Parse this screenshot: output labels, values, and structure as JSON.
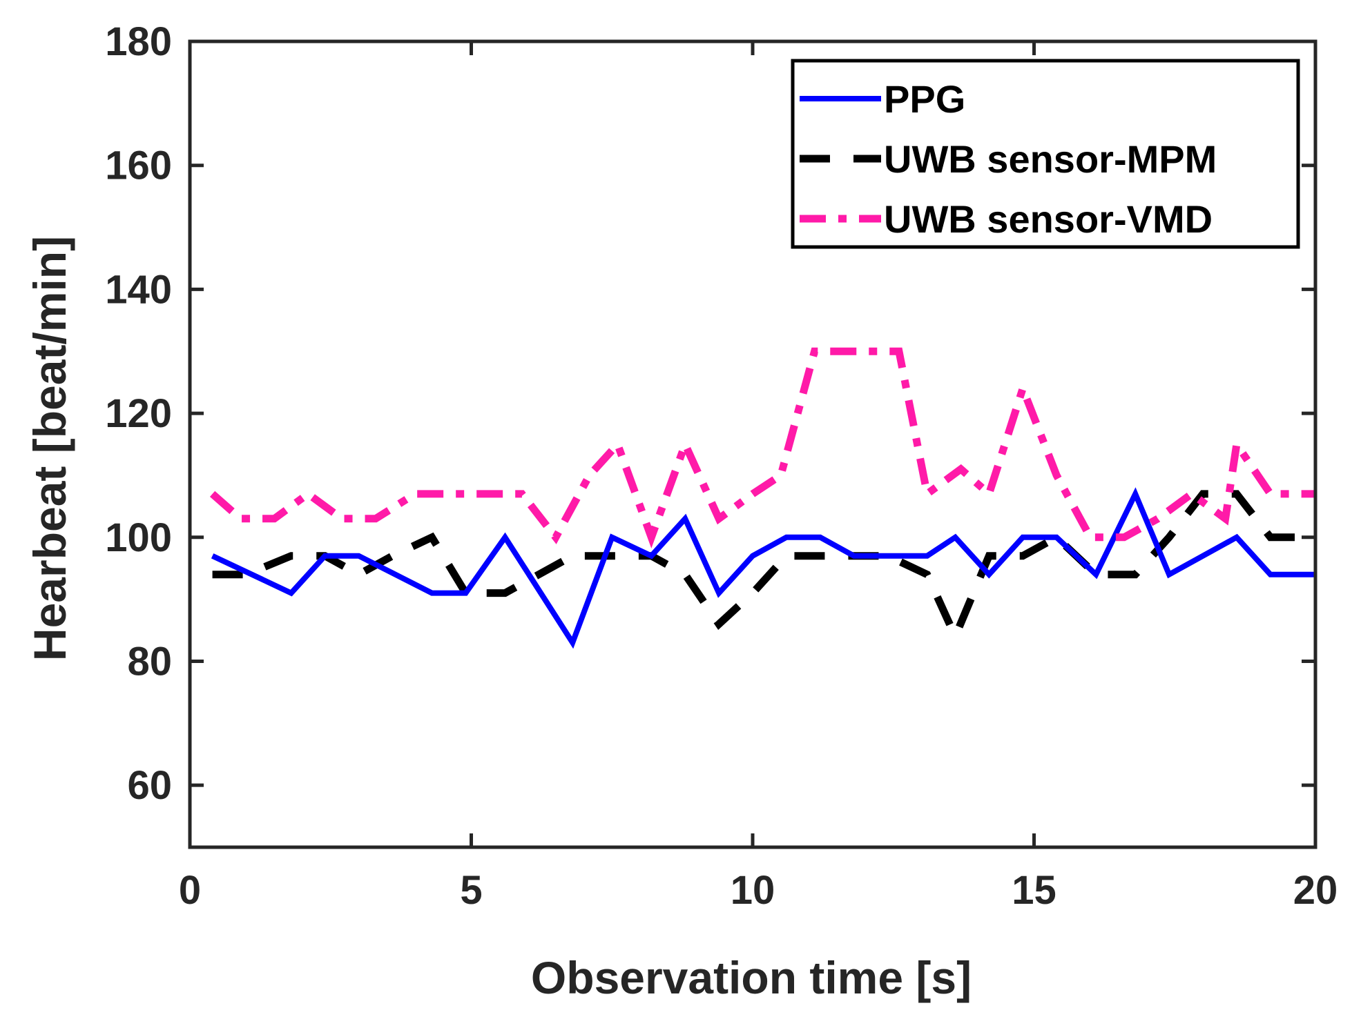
{
  "chart_data": {
    "type": "line",
    "title": "",
    "xlabel": "Observation time [s]",
    "ylabel": "Hearbeat [beat/min]",
    "xlim": [
      0,
      20
    ],
    "ylim": [
      50,
      180
    ],
    "xticks": [
      0,
      5,
      10,
      15,
      20
    ],
    "yticks": [
      60,
      80,
      100,
      120,
      140,
      160,
      180
    ],
    "xtick_labels": [
      "0",
      "5",
      "10",
      "15",
      "20"
    ],
    "ytick_labels": [
      "60",
      "80",
      "100",
      "120",
      "140",
      "160",
      "180"
    ],
    "grid": false,
    "legend_position": "top-right",
    "series": [
      {
        "name": "PPG",
        "color": "#0000ff",
        "style": "solid",
        "x": [
          0.4,
          1.8,
          2.4,
          3.0,
          4.3,
          4.9,
          5.6,
          6.8,
          7.5,
          8.2,
          8.8,
          9.4,
          10.0,
          10.6,
          11.2,
          11.8,
          12.4,
          13.1,
          13.6,
          14.2,
          14.8,
          15.4,
          16.1,
          16.8,
          17.4,
          18.0,
          18.6,
          19.2,
          20.0
        ],
        "y": [
          97,
          91,
          97,
          97,
          91,
          91,
          100,
          83,
          100,
          97,
          103,
          91,
          97,
          100,
          100,
          97,
          97,
          97,
          100,
          94,
          100,
          100,
          94,
          107,
          94,
          97,
          100,
          94,
          94
        ]
      },
      {
        "name": "UWB sensor-MPM",
        "color": "#000000",
        "style": "dashed",
        "x": [
          0.4,
          1.0,
          1.8,
          2.4,
          3.0,
          3.6,
          4.3,
          4.9,
          5.6,
          6.2,
          6.8,
          7.5,
          8.2,
          8.8,
          9.4,
          10.0,
          10.6,
          11.2,
          11.8,
          12.4,
          13.1,
          13.6,
          14.2,
          14.8,
          15.4,
          16.1,
          16.8,
          17.4,
          18.0,
          18.6,
          19.2,
          20.0
        ],
        "y": [
          94,
          94,
          97,
          97,
          94,
          97,
          100,
          91,
          91,
          94,
          97,
          97,
          97,
          94,
          86,
          91,
          97,
          97,
          97,
          97,
          94,
          84,
          97,
          97,
          100,
          94,
          94,
          100,
          107,
          107,
          100,
          100
        ]
      },
      {
        "name": "UWB sensor-VMD",
        "color": "#ff1aa8",
        "style": "dash-dot",
        "x": [
          0.4,
          0.9,
          1.5,
          2.1,
          2.7,
          3.3,
          4.0,
          4.6,
          5.2,
          5.9,
          6.5,
          7.1,
          7.6,
          8.2,
          8.8,
          9.4,
          10.0,
          10.5,
          11.1,
          11.7,
          12.3,
          12.6,
          13.1,
          13.7,
          14.2,
          14.8,
          15.4,
          16.0,
          16.6,
          17.2,
          17.8,
          18.4,
          18.6,
          19.2,
          20.0
        ],
        "y": [
          107,
          103,
          103,
          107,
          103,
          103,
          107,
          107,
          107,
          107,
          100,
          110,
          115,
          100,
          115,
          103,
          107,
          110,
          130,
          130,
          130,
          130,
          107,
          111,
          107,
          124,
          110,
          100,
          100,
          103,
          107,
          103,
          115,
          107,
          107
        ]
      }
    ]
  }
}
